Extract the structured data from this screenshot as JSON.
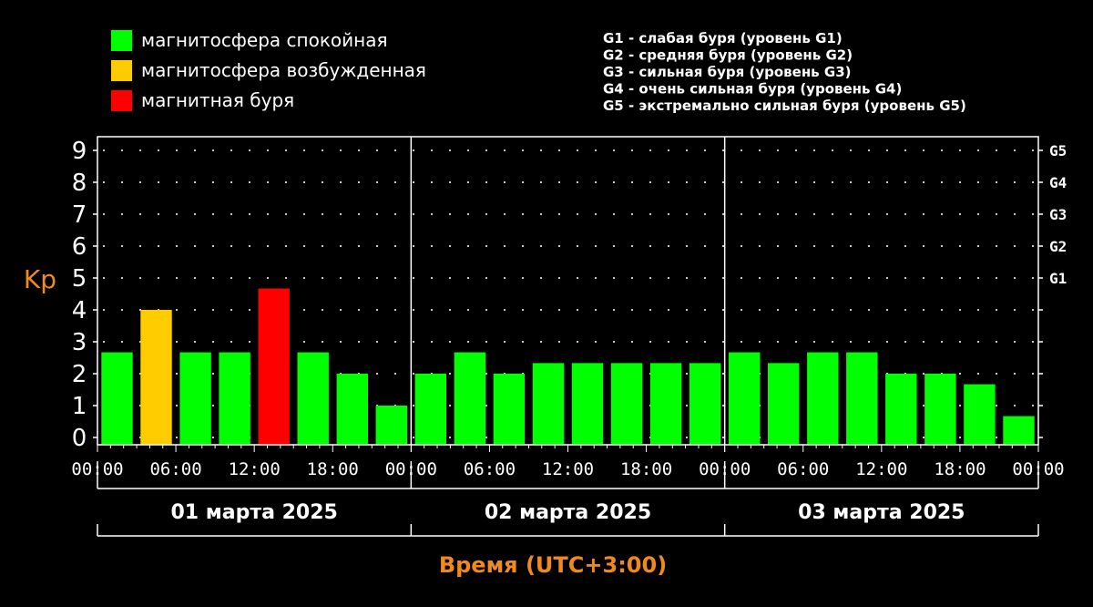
{
  "chart_data": {
    "type": "bar",
    "ylabel": "Kp",
    "xlabel": "Время (UTC+3:00)",
    "ylim": [
      0,
      9
    ],
    "y_ticks": [
      "0",
      "1",
      "2",
      "3",
      "4",
      "5",
      "6",
      "7",
      "8",
      "9"
    ],
    "g_levels": [
      {
        "kp": 5,
        "label": "G1"
      },
      {
        "kp": 6,
        "label": "G2"
      },
      {
        "kp": 7,
        "label": "G3"
      },
      {
        "kp": 8,
        "label": "G4"
      },
      {
        "kp": 9,
        "label": "G5"
      }
    ],
    "legend": [
      {
        "label": "магнитосфера спокойная",
        "color": "#00ff00"
      },
      {
        "label": "магнитосфера возбужденная",
        "color": "#ffcc00"
      },
      {
        "label": "магнитная буря",
        "color": "#ff0000"
      }
    ],
    "storm_scale": [
      "G1 - слабая буря (уровень G1)",
      "G2 - средняя буря (уровень G2)",
      "G3 - сильная буря (уровень G3)",
      "G4 - очень сильная буря (уровень G4)",
      "G5 - экстремально сильная буря (уровень G5)"
    ],
    "colors": {
      "quiet": "#00ff00",
      "active": "#ffcc00",
      "storm": "#ff0000",
      "axis_title": "#f08a1c"
    },
    "days": [
      {
        "label": "01 марта 2025",
        "x_ticks": [
          "00:00",
          "06:00",
          "12:00",
          "18:00"
        ],
        "values": [
          2.67,
          4.0,
          2.67,
          2.67,
          4.67,
          2.67,
          2.0,
          1.0
        ],
        "levels": [
          "quiet",
          "active",
          "quiet",
          "quiet",
          "storm",
          "quiet",
          "quiet",
          "quiet"
        ]
      },
      {
        "label": "02 марта 2025",
        "x_ticks": [
          "00:00",
          "06:00",
          "12:00",
          "18:00"
        ],
        "values": [
          2.0,
          2.67,
          2.0,
          2.33,
          2.33,
          2.33,
          2.33,
          2.33
        ],
        "levels": [
          "quiet",
          "quiet",
          "quiet",
          "quiet",
          "quiet",
          "quiet",
          "quiet",
          "quiet"
        ]
      },
      {
        "label": "03 марта 2025",
        "x_ticks": [
          "00:00",
          "06:00",
          "12:00",
          "18:00",
          "00:00"
        ],
        "values": [
          2.67,
          2.33,
          2.67,
          2.67,
          2.0,
          2.0,
          1.67,
          0.67
        ],
        "levels": [
          "quiet",
          "quiet",
          "quiet",
          "quiet",
          "quiet",
          "quiet",
          "quiet",
          "quiet"
        ]
      }
    ]
  }
}
